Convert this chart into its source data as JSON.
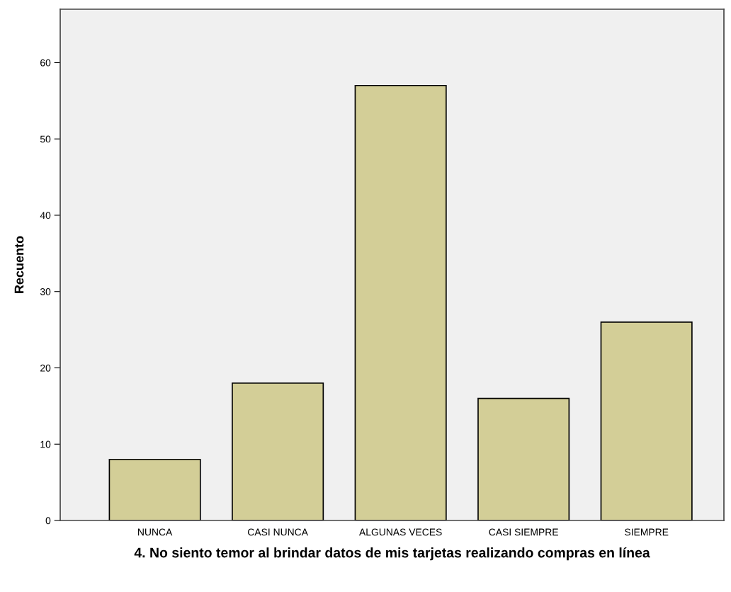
{
  "chart_data": {
    "type": "bar",
    "xlabel": "4. No siento temor al brindar datos de mis tarjetas realizando compras en línea",
    "ylabel": "Recuento",
    "categories": [
      "NUNCA",
      "CASI NUNCA",
      "ALGUNAS VECES",
      "CASI SIEMPRE",
      "SIEMPRE"
    ],
    "values": [
      8,
      18,
      57,
      16,
      26
    ],
    "color": "#d3ce97",
    "ylim": [
      0,
      67
    ],
    "yticks": [
      0,
      10,
      20,
      30,
      40,
      50,
      60
    ],
    "grid": false,
    "legend": false
  }
}
